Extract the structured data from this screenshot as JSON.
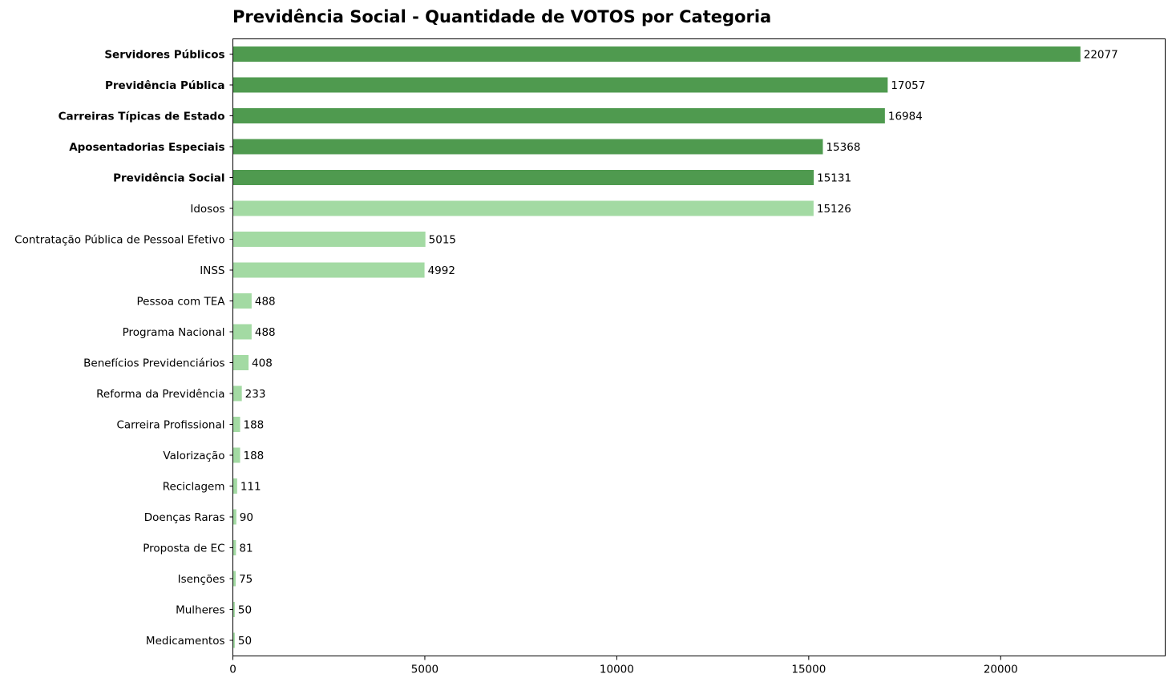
{
  "chart_data": {
    "type": "bar",
    "orientation": "horizontal",
    "title": "Previdência Social - Quantidade de VOTOS por Categoria",
    "xlabel": "",
    "ylabel": "",
    "xlim": [
      0,
      24285
    ],
    "x_ticks": [
      0,
      5000,
      10000,
      15000,
      20000
    ],
    "grid": false,
    "legend": "none",
    "colors": {
      "highlight": "#4f9a4f",
      "normal": "#a3daa3",
      "axis": "#000000",
      "text": "#000000"
    },
    "categories": [
      "Servidores Públicos",
      "Previdência Pública",
      "Carreiras Típicas de Estado",
      "Aposentadorias Especiais",
      "Previdência Social",
      "Idosos",
      "Contratação Pública de Pessoal Efetivo",
      "INSS",
      "Pessoa com TEA",
      "Programa Nacional",
      "Benefícios Previdenciários",
      "Reforma da Previdência",
      "Carreira Profissional",
      "Valorização",
      "Reciclagem",
      "Doenças Raras",
      "Proposta de EC",
      "Isenções",
      "Mulheres",
      "Medicamentos"
    ],
    "values": [
      22077,
      17057,
      16984,
      15368,
      15131,
      15126,
      5015,
      4992,
      488,
      488,
      408,
      233,
      188,
      188,
      111,
      90,
      81,
      75,
      50,
      50
    ],
    "highlighted": [
      true,
      true,
      true,
      true,
      true,
      false,
      false,
      false,
      false,
      false,
      false,
      false,
      false,
      false,
      false,
      false,
      false,
      false,
      false,
      false
    ]
  }
}
